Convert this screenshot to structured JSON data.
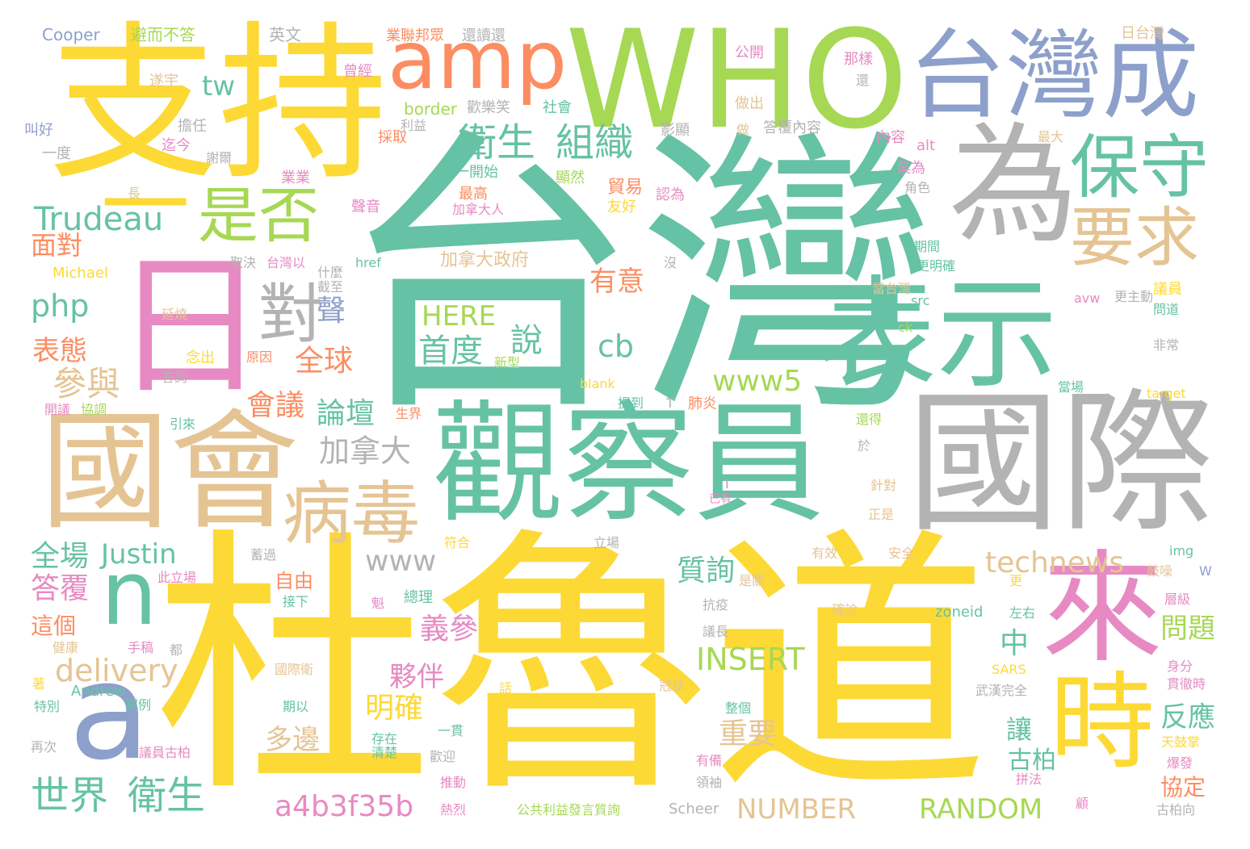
{
  "colors": {
    "teal": "#66c2a5",
    "yellow": "#fdd935",
    "gray": "#b3b3b3",
    "tan": "#e5c494",
    "pink": "#e78ac3",
    "blue": "#8da0cb",
    "green": "#a6d854",
    "orange": "#fc8d62"
  },
  "words": [
    {
      "text": "台灣",
      "color": "teal"
    },
    {
      "text": "杜魯道",
      "color": "yellow"
    },
    {
      "text": "觀察員",
      "color": "teal"
    },
    {
      "text": "國際",
      "color": "gray"
    },
    {
      "text": "支持",
      "color": "yellow"
    },
    {
      "text": "WHO",
      "color": "green"
    },
    {
      "text": "國會",
      "color": "tan"
    },
    {
      "text": "台灣成",
      "color": "blue"
    },
    {
      "text": "為",
      "color": "gray"
    },
    {
      "text": "表示",
      "color": "teal"
    },
    {
      "text": "日",
      "color": "pink"
    },
    {
      "text": "amp",
      "color": "orange"
    },
    {
      "text": "來",
      "color": "pink"
    },
    {
      "text": "時",
      "color": "yellow"
    },
    {
      "text": "a",
      "color": "blue"
    },
    {
      "text": "n",
      "color": "teal"
    },
    {
      "text": "一",
      "color": "yellow"
    },
    {
      "text": "保守",
      "color": "teal"
    },
    {
      "text": "要求",
      "color": "tan"
    },
    {
      "text": "是否",
      "color": "green"
    },
    {
      "text": "病毒",
      "color": "tan"
    },
    {
      "text": "對",
      "color": "gray"
    },
    {
      "text": "衛生",
      "color": "teal"
    },
    {
      "text": "組織",
      "color": "teal"
    },
    {
      "text": "Trudeau",
      "color": "teal"
    },
    {
      "text": "世界",
      "color": "teal"
    },
    {
      "text": "衛生",
      "color": "teal"
    },
    {
      "text": "a4b3f35b",
      "color": "pink"
    },
    {
      "text": "NUMBER",
      "color": "tan"
    },
    {
      "text": "RANDOM",
      "color": "green"
    },
    {
      "text": "INSERT",
      "color": "green"
    },
    {
      "text": "technews",
      "color": "tan"
    },
    {
      "text": "delivery",
      "color": "tan"
    },
    {
      "text": "www5",
      "color": "green"
    },
    {
      "text": "Justin",
      "color": "teal"
    },
    {
      "text": "www",
      "color": "gray"
    },
    {
      "text": "HERE",
      "color": "green"
    },
    {
      "text": "首度",
      "color": "teal"
    },
    {
      "text": "說",
      "color": "teal"
    },
    {
      "text": "加拿大",
      "color": "gray"
    },
    {
      "text": "參與",
      "color": "tan"
    },
    {
      "text": "php",
      "color": "teal"
    },
    {
      "text": "cb",
      "color": "teal"
    },
    {
      "text": "tw",
      "color": "teal"
    },
    {
      "text": "全球",
      "color": "orange"
    },
    {
      "text": "會議",
      "color": "orange"
    },
    {
      "text": "論壇",
      "color": "teal"
    },
    {
      "text": "聲",
      "color": "blue"
    },
    {
      "text": "表態",
      "color": "orange"
    },
    {
      "text": "面對",
      "color": "orange"
    },
    {
      "text": "全場",
      "color": "teal"
    },
    {
      "text": "答覆",
      "color": "pink"
    },
    {
      "text": "有意",
      "color": "orange"
    },
    {
      "text": "質詢",
      "color": "teal"
    },
    {
      "text": "義參",
      "color": "pink"
    },
    {
      "text": "夥伴",
      "color": "pink"
    },
    {
      "text": "明確",
      "color": "yellow"
    },
    {
      "text": "多邊",
      "color": "tan"
    },
    {
      "text": "重要",
      "color": "tan"
    },
    {
      "text": "中",
      "color": "teal"
    },
    {
      "text": "問題",
      "color": "green"
    },
    {
      "text": "反應",
      "color": "teal"
    },
    {
      "text": "讓",
      "color": "teal"
    },
    {
      "text": "古柏",
      "color": "teal"
    },
    {
      "text": "協定",
      "color": "orange"
    },
    {
      "text": "貿易",
      "color": "orange"
    },
    {
      "text": "加拿大政府",
      "color": "tan"
    },
    {
      "text": "這個",
      "color": "orange"
    },
    {
      "text": "自由",
      "color": "orange"
    },
    {
      "text": "Cooper",
      "color": "blue"
    },
    {
      "text": "避而不答",
      "color": "green"
    },
    {
      "text": "英文",
      "color": "gray"
    },
    {
      "text": "業聯邦眾",
      "color": "orange"
    },
    {
      "text": "還讀還",
      "color": "gray"
    },
    {
      "text": "日台灣",
      "color": "tan"
    },
    {
      "text": "公開",
      "color": "pink"
    },
    {
      "text": "那樣",
      "color": "pink"
    },
    {
      "text": "還",
      "color": "gray"
    },
    {
      "text": "曾經",
      "color": "pink"
    },
    {
      "text": "遂宇",
      "color": "tan"
    },
    {
      "text": "border",
      "color": "green"
    },
    {
      "text": "歡樂笑",
      "color": "gray"
    },
    {
      "text": "社會",
      "color": "teal"
    },
    {
      "text": "做出",
      "color": "tan"
    },
    {
      "text": "叫好",
      "color": "blue"
    },
    {
      "text": "利益",
      "color": "gray"
    },
    {
      "text": "擔任",
      "color": "gray"
    },
    {
      "text": "影顯",
      "color": "gray"
    },
    {
      "text": "做",
      "color": "tan"
    },
    {
      "text": "答覆內容",
      "color": "gray"
    },
    {
      "text": "一度",
      "color": "gray"
    },
    {
      "text": "迄今",
      "color": "pink"
    },
    {
      "text": "採取",
      "color": "orange"
    },
    {
      "text": "內容",
      "color": "pink"
    },
    {
      "text": "alt",
      "color": "pink"
    },
    {
      "text": "最大",
      "color": "tan"
    },
    {
      "text": "謝爾",
      "color": "gray"
    },
    {
      "text": "一開始",
      "color": "teal"
    },
    {
      "text": "業業",
      "color": "pink"
    },
    {
      "text": "顯然",
      "color": "green"
    },
    {
      "text": "業為",
      "color": "pink"
    },
    {
      "text": "長",
      "color": "tan"
    },
    {
      "text": "最高",
      "color": "orange"
    },
    {
      "text": "認為",
      "color": "pink"
    },
    {
      "text": "角色",
      "color": "gray"
    },
    {
      "text": "聲音",
      "color": "pink"
    },
    {
      "text": "加拿大人",
      "color": "pink"
    },
    {
      "text": "友好",
      "color": "yellow"
    },
    {
      "text": "期間",
      "color": "teal"
    },
    {
      "text": "Michael",
      "color": "yellow"
    },
    {
      "text": "取決",
      "color": "gray"
    },
    {
      "text": "台灣以",
      "color": "pink"
    },
    {
      "text": "href",
      "color": "teal"
    },
    {
      "text": "沒",
      "color": "gray"
    },
    {
      "text": "更明確",
      "color": "teal"
    },
    {
      "text": "什麼",
      "color": "gray"
    },
    {
      "text": "截至",
      "color": "gray"
    },
    {
      "text": "當台灣",
      "color": "tan"
    },
    {
      "text": "議員",
      "color": "yellow"
    },
    {
      "text": "延燒",
      "color": "tan"
    },
    {
      "text": "avw",
      "color": "pink"
    },
    {
      "text": "更主動",
      "color": "gray"
    },
    {
      "text": "src",
      "color": "teal"
    },
    {
      "text": "問道",
      "color": "teal"
    },
    {
      "text": "念出",
      "color": "yellow"
    },
    {
      "text": "原因",
      "color": "orange"
    },
    {
      "text": "新型",
      "color": "green"
    },
    {
      "text": "ck",
      "color": "green"
    },
    {
      "text": "非常",
      "color": "gray"
    },
    {
      "text": "答詢",
      "color": "gray"
    },
    {
      "text": "blank",
      "color": "yellow"
    },
    {
      "text": "當場",
      "color": "teal"
    },
    {
      "text": "target",
      "color": "yellow"
    },
    {
      "text": "開議",
      "color": "pink"
    },
    {
      "text": "協調",
      "color": "green"
    },
    {
      "text": "生界",
      "color": "orange"
    },
    {
      "text": "提到",
      "color": "teal"
    },
    {
      "text": "T",
      "color": "gray"
    },
    {
      "text": "肺炎",
      "color": "orange"
    },
    {
      "text": "引來",
      "color": "teal"
    },
    {
      "text": "還得",
      "color": "green"
    },
    {
      "text": "於",
      "color": "gray"
    },
    {
      "text": "針對",
      "color": "tan"
    },
    {
      "text": "I",
      "color": "pink"
    },
    {
      "text": "已有",
      "color": "pink"
    },
    {
      "text": "正是",
      "color": "tan"
    },
    {
      "text": "符合",
      "color": "yellow"
    },
    {
      "text": "立場",
      "color": "gray"
    },
    {
      "text": "img",
      "color": "teal"
    },
    {
      "text": "蓄過",
      "color": "gray"
    },
    {
      "text": "有效",
      "color": "tan"
    },
    {
      "text": "安全",
      "color": "tan"
    },
    {
      "text": "此立場",
      "color": "pink"
    },
    {
      "text": "是關",
      "color": "tan"
    },
    {
      "text": "更",
      "color": "yellow"
    },
    {
      "text": "鼓噪",
      "color": "tan"
    },
    {
      "text": "W",
      "color": "blue"
    },
    {
      "text": "接下",
      "color": "teal"
    },
    {
      "text": "總理",
      "color": "teal"
    },
    {
      "text": "抗疫",
      "color": "gray"
    },
    {
      "text": "確診",
      "color": "tan"
    },
    {
      "text": "左右",
      "color": "teal"
    },
    {
      "text": "層級",
      "color": "pink"
    },
    {
      "text": "zoneid",
      "color": "teal"
    },
    {
      "text": "魁",
      "color": "pink"
    },
    {
      "text": "健康",
      "color": "tan"
    },
    {
      "text": "手稿",
      "color": "pink"
    },
    {
      "text": "都",
      "color": "gray"
    },
    {
      "text": "議長",
      "color": "gray"
    },
    {
      "text": "國際衛",
      "color": "tan"
    },
    {
      "text": "SARS",
      "color": "yellow"
    },
    {
      "text": "身分",
      "color": "pink"
    },
    {
      "text": "Andrew",
      "color": "teal"
    },
    {
      "text": "話",
      "color": "yellow"
    },
    {
      "text": "冠狀",
      "color": "tan"
    },
    {
      "text": "武漢完全",
      "color": "gray"
    },
    {
      "text": "貫徹時",
      "color": "pink"
    },
    {
      "text": "著",
      "color": "yellow"
    },
    {
      "text": "特別",
      "color": "teal"
    },
    {
      "text": "案例",
      "color": "teal"
    },
    {
      "text": "期以",
      "color": "teal"
    },
    {
      "text": "整個",
      "color": "teal"
    },
    {
      "text": "一貫",
      "color": "teal"
    },
    {
      "text": "存在",
      "color": "teal"
    },
    {
      "text": "再次",
      "color": "gray"
    },
    {
      "text": "議員古柏",
      "color": "pink"
    },
    {
      "text": "清楚",
      "color": "teal"
    },
    {
      "text": "歡迎",
      "color": "gray"
    },
    {
      "text": "有備",
      "color": "pink"
    },
    {
      "text": "天鼓掌",
      "color": "yellow"
    },
    {
      "text": "爆發",
      "color": "pink"
    },
    {
      "text": "領袖",
      "color": "gray"
    },
    {
      "text": "拼法",
      "color": "pink"
    },
    {
      "text": "推動",
      "color": "pink"
    },
    {
      "text": "熱烈",
      "color": "pink"
    },
    {
      "text": "公共利益發言質詢",
      "color": "green"
    },
    {
      "text": "Scheer",
      "color": "gray"
    },
    {
      "text": "顧",
      "color": "pink"
    },
    {
      "text": "古柏向",
      "color": "gray"
    }
  ]
}
